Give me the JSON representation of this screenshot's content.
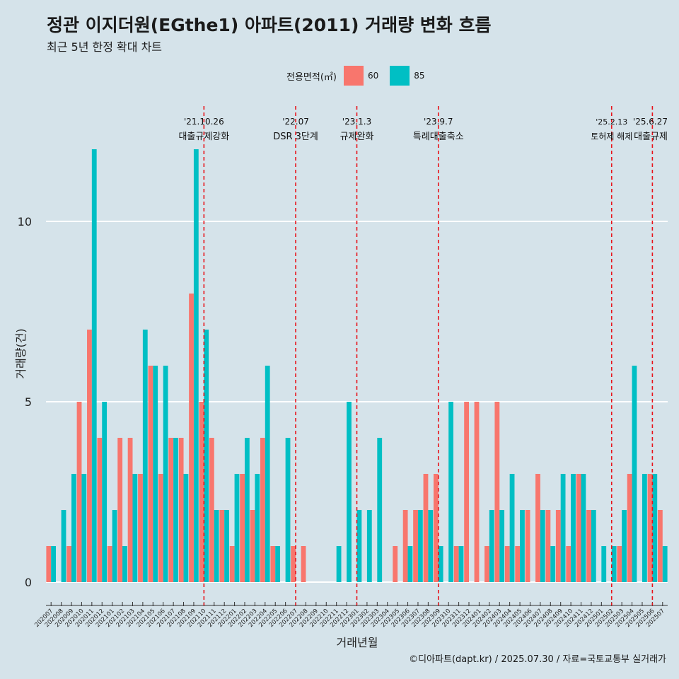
{
  "header": {
    "title": "정관 이지더원(EGthe1) 아파트(2011) 거래량 변화 흐름",
    "subtitle": "최근 5년 한정 확대 차트"
  },
  "legend": {
    "title": "전용면적(㎡)",
    "items": [
      {
        "label": "60",
        "color": "#f8766d"
      },
      {
        "label": "85",
        "color": "#00bfc4"
      }
    ]
  },
  "caption": "©디아파트(dapt.kr) / 2025.07.30 / 자료=국토교통부 실거래가",
  "chart_data": {
    "type": "bar",
    "xlabel": "거래년월",
    "ylabel": "거래량(건)",
    "ylim": [
      0,
      13
    ],
    "yticks": [
      0,
      5,
      10
    ],
    "categories": [
      "202007",
      "202008",
      "202009",
      "202010",
      "202011",
      "202012",
      "202101",
      "202102",
      "202103",
      "202104",
      "202105",
      "202106",
      "202107",
      "202108",
      "202109",
      "202110",
      "202111",
      "202112",
      "202201",
      "202202",
      "202203",
      "202204",
      "202205",
      "202206",
      "202207",
      "202208",
      "202209",
      "202210",
      "202211",
      "202212",
      "202301",
      "202302",
      "202303",
      "202304",
      "202305",
      "202306",
      "202307",
      "202308",
      "202309",
      "202310",
      "202311",
      "202312",
      "202401",
      "202402",
      "202403",
      "202404",
      "202405",
      "202406",
      "202407",
      "202408",
      "202409",
      "202410",
      "202411",
      "202412",
      "202501",
      "202502",
      "202503",
      "202504",
      "202505",
      "202506",
      "202507"
    ],
    "series": [
      {
        "name": "60",
        "color": "#f8766d",
        "values": [
          1,
          0,
          1,
          5,
          7,
          4,
          1,
          4,
          4,
          3,
          6,
          3,
          4,
          4,
          8,
          5,
          4,
          2,
          1,
          3,
          2,
          4,
          1,
          0,
          1,
          1,
          0,
          0,
          0,
          0,
          0,
          0,
          0,
          0,
          1,
          2,
          2,
          3,
          3,
          0,
          1,
          5,
          5,
          1,
          5,
          1,
          1,
          2,
          3,
          2,
          2,
          1,
          3,
          2,
          0,
          0,
          1,
          3,
          0,
          3,
          2
        ]
      },
      {
        "name": "85",
        "color": "#00bfc4",
        "values": [
          1,
          2,
          3,
          3,
          12,
          5,
          2,
          1,
          3,
          7,
          6,
          6,
          4,
          3,
          12,
          7,
          2,
          2,
          3,
          4,
          3,
          6,
          1,
          4,
          0,
          0,
          0,
          0,
          1,
          5,
          2,
          2,
          4,
          0,
          0,
          1,
          2,
          2,
          1,
          5,
          1,
          0,
          0,
          2,
          2,
          3,
          2,
          0,
          2,
          1,
          3,
          3,
          3,
          2,
          1,
          1,
          2,
          6,
          3,
          3,
          1
        ]
      }
    ],
    "events": [
      {
        "category": "202110",
        "date": "'21.10.26",
        "label": "대출규제강화"
      },
      {
        "category": "202207",
        "date": "'22.07",
        "label": "DSR 3단계"
      },
      {
        "category": "202301",
        "date": "'23.1.3",
        "label": "규제완화"
      },
      {
        "category": "202309",
        "date": "'23.9.7",
        "label": "특례대출축소"
      },
      {
        "category": "202502",
        "date": "'25.2.13",
        "label": "토허제 해제"
      },
      {
        "category": "202506",
        "date": "'25.6.27",
        "label": "대출규제"
      }
    ],
    "grid": true,
    "legend_position": "top"
  }
}
